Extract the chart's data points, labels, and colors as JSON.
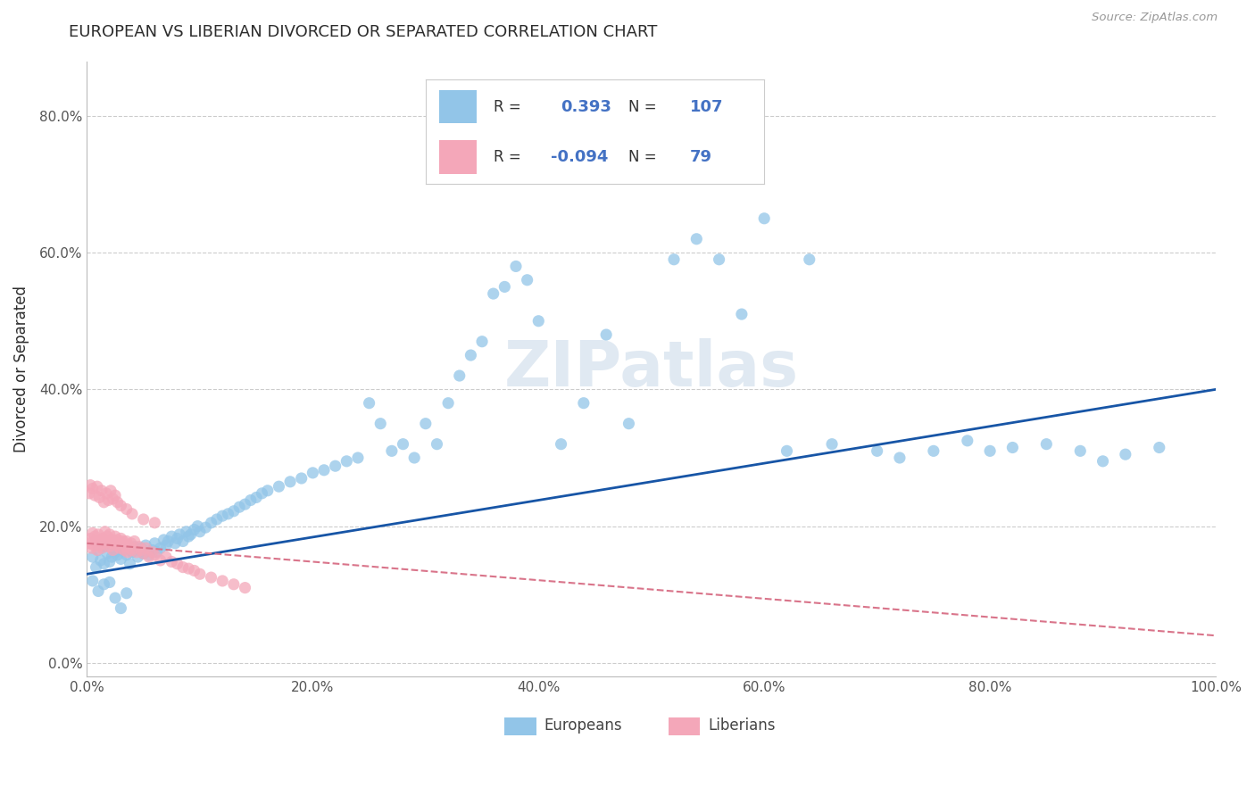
{
  "title": "EUROPEAN VS LIBERIAN DIVORCED OR SEPARATED CORRELATION CHART",
  "source": "Source: ZipAtlas.com",
  "ylabel": "Divorced or Separated",
  "watermark": "ZIPatlas",
  "legend_r_european": "0.393",
  "legend_n_european": "107",
  "legend_r_liberian": "-0.094",
  "legend_n_liberian": "79",
  "xlim": [
    0.0,
    1.0
  ],
  "ylim": [
    -0.02,
    0.88
  ],
  "xticks": [
    0.0,
    0.2,
    0.4,
    0.6,
    0.8,
    1.0
  ],
  "xtick_labels": [
    "0.0%",
    "20.0%",
    "40.0%",
    "60.0%",
    "80.0%",
    "100.0%"
  ],
  "yticks": [
    0.0,
    0.2,
    0.4,
    0.6,
    0.8
  ],
  "ytick_labels": [
    "0.0%",
    "20.0%",
    "40.0%",
    "60.0%",
    "80.0%"
  ],
  "color_european": "#92C5E8",
  "color_liberian": "#F4A7B9",
  "trendline_european": "#1755A6",
  "trendline_liberian": "#D9748A",
  "background_color": "#FFFFFF",
  "grid_color": "#CCCCCC",
  "title_color": "#2D2D2D",
  "axis_label_color": "#555555",
  "legend_text_color": "#333333",
  "legend_value_color": "#4472C4",
  "eu_trendline_start_y": 0.13,
  "eu_trendline_end_y": 0.4,
  "lib_trendline_start_y": 0.175,
  "lib_trendline_end_y": 0.04,
  "european_x": [
    0.005,
    0.008,
    0.01,
    0.012,
    0.015,
    0.015,
    0.018,
    0.02,
    0.022,
    0.025,
    0.027,
    0.03,
    0.032,
    0.035,
    0.038,
    0.04,
    0.042,
    0.045,
    0.048,
    0.05,
    0.052,
    0.055,
    0.058,
    0.06,
    0.062,
    0.065,
    0.068,
    0.07,
    0.072,
    0.075,
    0.078,
    0.08,
    0.082,
    0.085,
    0.088,
    0.09,
    0.092,
    0.095,
    0.098,
    0.1,
    0.105,
    0.11,
    0.115,
    0.12,
    0.125,
    0.13,
    0.135,
    0.14,
    0.145,
    0.15,
    0.155,
    0.16,
    0.17,
    0.18,
    0.19,
    0.2,
    0.21,
    0.22,
    0.23,
    0.24,
    0.25,
    0.26,
    0.27,
    0.28,
    0.29,
    0.3,
    0.31,
    0.32,
    0.33,
    0.34,
    0.35,
    0.36,
    0.37,
    0.38,
    0.39,
    0.4,
    0.42,
    0.44,
    0.46,
    0.48,
    0.5,
    0.52,
    0.54,
    0.56,
    0.58,
    0.6,
    0.62,
    0.64,
    0.66,
    0.7,
    0.72,
    0.75,
    0.78,
    0.8,
    0.82,
    0.85,
    0.88,
    0.9,
    0.92,
    0.95,
    0.005,
    0.01,
    0.015,
    0.02,
    0.025,
    0.03,
    0.035
  ],
  "european_y": [
    0.155,
    0.14,
    0.165,
    0.15,
    0.145,
    0.17,
    0.16,
    0.148,
    0.155,
    0.162,
    0.158,
    0.152,
    0.165,
    0.158,
    0.145,
    0.162,
    0.17,
    0.155,
    0.168,
    0.16,
    0.172,
    0.158,
    0.165,
    0.175,
    0.162,
    0.168,
    0.18,
    0.172,
    0.178,
    0.185,
    0.175,
    0.182,
    0.188,
    0.178,
    0.192,
    0.185,
    0.188,
    0.195,
    0.2,
    0.192,
    0.198,
    0.205,
    0.21,
    0.215,
    0.218,
    0.222,
    0.228,
    0.232,
    0.238,
    0.242,
    0.248,
    0.252,
    0.258,
    0.265,
    0.27,
    0.278,
    0.282,
    0.288,
    0.295,
    0.3,
    0.38,
    0.35,
    0.31,
    0.32,
    0.3,
    0.35,
    0.32,
    0.38,
    0.42,
    0.45,
    0.47,
    0.54,
    0.55,
    0.58,
    0.56,
    0.5,
    0.32,
    0.38,
    0.48,
    0.35,
    0.72,
    0.59,
    0.62,
    0.59,
    0.51,
    0.65,
    0.31,
    0.59,
    0.32,
    0.31,
    0.3,
    0.31,
    0.325,
    0.31,
    0.315,
    0.32,
    0.31,
    0.295,
    0.305,
    0.315,
    0.12,
    0.105,
    0.115,
    0.118,
    0.095,
    0.08,
    0.102
  ],
  "liberian_x": [
    0.002,
    0.003,
    0.004,
    0.005,
    0.006,
    0.007,
    0.008,
    0.009,
    0.01,
    0.011,
    0.012,
    0.013,
    0.014,
    0.015,
    0.016,
    0.017,
    0.018,
    0.019,
    0.02,
    0.021,
    0.022,
    0.023,
    0.024,
    0.025,
    0.026,
    0.027,
    0.028,
    0.029,
    0.03,
    0.031,
    0.032,
    0.033,
    0.034,
    0.035,
    0.036,
    0.037,
    0.038,
    0.039,
    0.04,
    0.042,
    0.044,
    0.046,
    0.048,
    0.05,
    0.052,
    0.055,
    0.058,
    0.06,
    0.065,
    0.07,
    0.075,
    0.08,
    0.085,
    0.09,
    0.095,
    0.1,
    0.11,
    0.12,
    0.13,
    0.14,
    0.002,
    0.003,
    0.005,
    0.007,
    0.009,
    0.011,
    0.013,
    0.015,
    0.017,
    0.019,
    0.021,
    0.023,
    0.025,
    0.027,
    0.03,
    0.035,
    0.04,
    0.05,
    0.06
  ],
  "liberian_y": [
    0.175,
    0.182,
    0.168,
    0.19,
    0.172,
    0.185,
    0.178,
    0.165,
    0.188,
    0.172,
    0.18,
    0.168,
    0.182,
    0.175,
    0.192,
    0.178,
    0.185,
    0.17,
    0.188,
    0.175,
    0.18,
    0.165,
    0.178,
    0.185,
    0.172,
    0.18,
    0.175,
    0.168,
    0.182,
    0.175,
    0.178,
    0.165,
    0.17,
    0.178,
    0.162,
    0.172,
    0.168,
    0.175,
    0.165,
    0.178,
    0.162,
    0.17,
    0.165,
    0.16,
    0.168,
    0.155,
    0.162,
    0.158,
    0.15,
    0.155,
    0.148,
    0.145,
    0.14,
    0.138,
    0.135,
    0.13,
    0.125,
    0.12,
    0.115,
    0.11,
    0.248,
    0.26,
    0.255,
    0.245,
    0.258,
    0.242,
    0.252,
    0.235,
    0.248,
    0.238,
    0.252,
    0.24,
    0.245,
    0.235,
    0.23,
    0.225,
    0.218,
    0.21,
    0.205
  ]
}
